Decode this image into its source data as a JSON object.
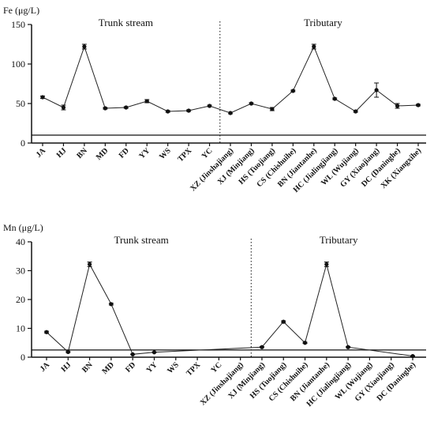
{
  "chart_data": [
    {
      "type": "line",
      "ylabel": "Fe (μg/L)",
      "ylim": [
        0,
        150
      ],
      "yticks": [
        0,
        50,
        100,
        150
      ],
      "categories": [
        "JA",
        "HJ",
        "BN",
        "MD",
        "FD",
        "YY",
        "WS",
        "TPX",
        "YC",
        "XZ (Jinshajiang)",
        "XJ (Minjiang)",
        "HS (Tuojiang)",
        "CS (Chishuihe)",
        "BN (Jiantanhe)",
        "HC (Jialingjiang)",
        "WL (Wujiang)",
        "GY (Xiaojiang)",
        "DC (Daninghe)",
        "XK (Xiangxihe)"
      ],
      "values": [
        58,
        45,
        122,
        44,
        45,
        53,
        40,
        41,
        47,
        38,
        50,
        43,
        66,
        122,
        56,
        40,
        67,
        47,
        48
      ],
      "errors": [
        1.5,
        3,
        3,
        1,
        1,
        2,
        1,
        1,
        1,
        1,
        1,
        2,
        1,
        3,
        1,
        1,
        9,
        3,
        1
      ],
      "reference_line": 10,
      "sections": [
        "Trunk stream",
        "Tributary"
      ],
      "divider_after_index": 8
    },
    {
      "type": "line",
      "ylabel": "Mn (μg/L)",
      "ylim": [
        0,
        40
      ],
      "yticks": [
        0,
        10,
        20,
        30,
        40
      ],
      "categories": [
        "JA",
        "HJ",
        "BN",
        "MD",
        "FD",
        "YY",
        "WS",
        "TPX",
        "YC",
        "XZ (Jinshajiang)",
        "XJ (Minjiang)",
        "HS (Tuojiang)",
        "CS (Chishuihe)",
        "BN (Jiantanhe)",
        "HC (Jialingjiang)",
        "WL (Wujiang)",
        "GY (Xiaojiang)",
        "DC (Daninghe)"
      ],
      "values": [
        8.7,
        1.8,
        32.2,
        18.4,
        1.0,
        1.7,
        null,
        null,
        null,
        null,
        3.5,
        12.3,
        5.0,
        32.2,
        3.5,
        null,
        null,
        0.4
      ],
      "errors": [
        0.3,
        0.2,
        0.8,
        0.3,
        0.1,
        0.1,
        null,
        null,
        null,
        null,
        0.2,
        0.3,
        0.2,
        0.8,
        0.2,
        null,
        null,
        0.1
      ],
      "reference_line": 2.5,
      "sections": [
        "Trunk stream",
        "Tributary"
      ],
      "divider_after_index": 9
    }
  ]
}
